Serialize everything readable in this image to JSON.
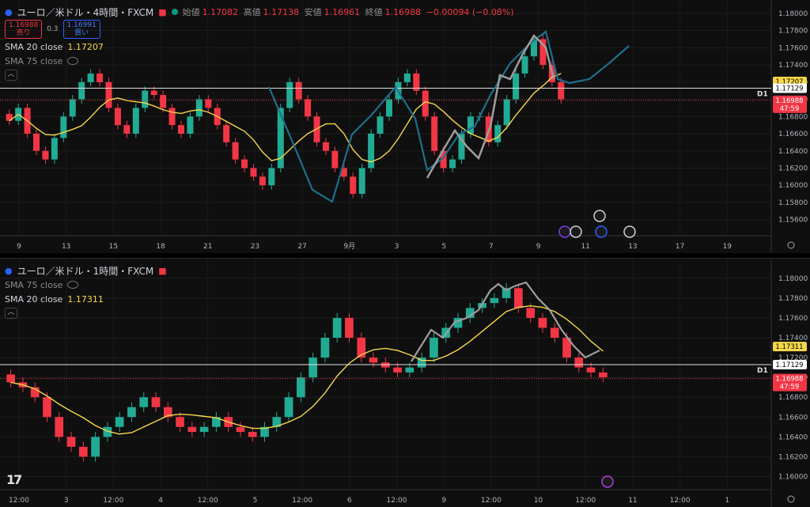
{
  "pane1": {
    "title": "ユーロ／米ドル・4時間・FXCM",
    "ohlc": {
      "open_label": "始値",
      "open": "1.17082",
      "high_label": "高値",
      "high": "1.17138",
      "low_label": "安値",
      "low": "1.16961",
      "close_label": "終値",
      "close": "1.16988",
      "change": "−0.00094 (−0.08%)"
    },
    "sell_price": "1.16988",
    "sell_label": "売り",
    "spread": "0.3",
    "buy_price": "1.16991",
    "buy_label": "買い",
    "sma_a_label": "SMA 20 close",
    "sma_a_value": "1.17207",
    "sma_b_label": "SMA 75 close",
    "y_ticks": [
      "1.18000",
      "1.17800",
      "1.17600",
      "1.17400",
      "1.17200",
      "1.17000",
      "1.16800",
      "1.16600",
      "1.16400",
      "1.16200",
      "1.16000",
      "1.15800",
      "1.15600"
    ],
    "x_ticks": [
      "9",
      "13",
      "15",
      "18",
      "21",
      "23",
      "27",
      "9月",
      "3",
      "5",
      "7",
      "9",
      "11",
      "13",
      "17",
      "19"
    ],
    "badge_sma": "1.17207",
    "badge_line": "1.17129",
    "badge_price": "1.16988",
    "badge_timer": "47:59",
    "d1": "D1"
  },
  "pane2": {
    "title": "ユーロ／米ドル・1時間・FXCM",
    "sma_b_label": "SMA 75 close",
    "sma_a_label": "SMA 20 close",
    "sma_a_value": "1.17311",
    "y_ticks": [
      "1.18000",
      "1.17800",
      "1.17600",
      "1.17400",
      "1.17200",
      "1.17000",
      "1.16800",
      "1.16600",
      "1.16400",
      "1.16200",
      "1.16000"
    ],
    "x_ticks": [
      "12:00",
      "3",
      "12:00",
      "4",
      "12:00",
      "5",
      "12:00",
      "6",
      "12:00",
      "9",
      "12:00",
      "10",
      "12:00",
      "11",
      "12:00",
      "1"
    ],
    "badge_sma": "1.17311",
    "badge_line": "1.17129",
    "badge_price": "1.16988",
    "badge_timer": "47:59",
    "d1": "D1"
  },
  "logo": "17",
  "chart_data": [
    {
      "type": "candlestick",
      "timeframe": "4H",
      "ylim": [
        1.1545,
        1.181
      ],
      "close_series": [
        1.1675,
        1.169,
        1.166,
        1.164,
        1.163,
        1.1655,
        1.168,
        1.17,
        1.172,
        1.173,
        1.172,
        1.169,
        1.167,
        1.166,
        1.169,
        1.171,
        1.1705,
        1.169,
        1.167,
        1.166,
        1.168,
        1.17,
        1.169,
        1.167,
        1.165,
        1.163,
        1.162,
        1.161,
        1.16,
        1.162,
        1.169,
        1.172,
        1.17,
        1.168,
        1.165,
        1.164,
        1.162,
        1.161,
        1.159,
        1.162,
        1.166,
        1.168,
        1.17,
        1.172,
        1.173,
        1.171,
        1.168,
        1.164,
        1.162,
        1.163,
        1.166,
        1.168,
        1.168,
        1.165,
        1.167,
        1.17,
        1.173,
        1.175,
        1.177,
        1.174,
        1.172,
        1.17
      ],
      "sma20_value": 1.17207,
      "price": 1.16988
    },
    {
      "type": "candlestick",
      "timeframe": "1H",
      "ylim": [
        1.159,
        1.1815
      ],
      "close_series": [
        1.1695,
        1.169,
        1.168,
        1.166,
        1.164,
        1.163,
        1.162,
        1.164,
        1.165,
        1.166,
        1.167,
        1.168,
        1.167,
        1.166,
        1.165,
        1.1645,
        1.165,
        1.166,
        1.165,
        1.1645,
        1.164,
        1.165,
        1.166,
        1.168,
        1.17,
        1.172,
        1.174,
        1.176,
        1.174,
        1.172,
        1.1715,
        1.171,
        1.1705,
        1.171,
        1.172,
        1.174,
        1.175,
        1.176,
        1.177,
        1.1775,
        1.178,
        1.179,
        1.177,
        1.176,
        1.175,
        1.174,
        1.172,
        1.171,
        1.1705,
        1.17
      ],
      "sma20_value": 1.17311,
      "price": 1.16988
    }
  ]
}
